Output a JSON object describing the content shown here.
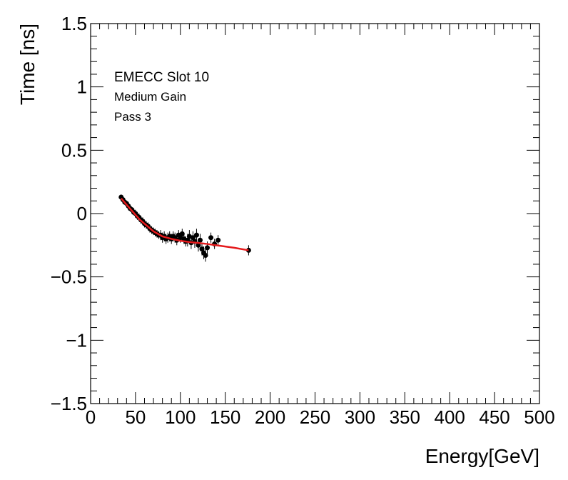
{
  "chart_data": {
    "type": "scatter",
    "title": "",
    "xlabel": "Energy[GeV]",
    "ylabel": "Time [ns]",
    "xlim": [
      0,
      500
    ],
    "ylim": [
      -1.5,
      1.5
    ],
    "x_ticks": [
      0,
      50,
      100,
      150,
      200,
      250,
      300,
      350,
      400,
      450,
      500
    ],
    "x_tick_labels": [
      "0",
      "50",
      "100",
      "150",
      "200",
      "250",
      "300",
      "350",
      "400",
      "450",
      "500"
    ],
    "y_ticks": [
      -1.5,
      -1,
      -0.5,
      0,
      0.5,
      1,
      1.5
    ],
    "y_tick_labels": [
      "−1.5",
      "−1",
      "−0.5",
      "0",
      "0.5",
      "1",
      "1.5"
    ],
    "grid": false,
    "annotations": [
      "EMECC Slot 10",
      "Medium Gain",
      "Pass 3"
    ],
    "colors": {
      "points": "#000000",
      "fit": "#e41a1c"
    },
    "series": [
      {
        "kind": "points_with_errors",
        "x": [
          34,
          36,
          38,
          40,
          42,
          44,
          46,
          48,
          50,
          52,
          54,
          56,
          58,
          60,
          62,
          64,
          66,
          68,
          70,
          72,
          74,
          76,
          78,
          80,
          82,
          84,
          86,
          88,
          90,
          92,
          94,
          96,
          98,
          100,
          102,
          104,
          106,
          108,
          110,
          112,
          114,
          116,
          118,
          120,
          122,
          124,
          126,
          128,
          130,
          134,
          138,
          142,
          176
        ],
        "y": [
          0.13,
          0.11,
          0.09,
          0.08,
          0.06,
          0.04,
          0.03,
          0.01,
          0.0,
          -0.02,
          -0.03,
          -0.05,
          -0.06,
          -0.08,
          -0.09,
          -0.1,
          -0.12,
          -0.13,
          -0.14,
          -0.15,
          -0.16,
          -0.17,
          -0.17,
          -0.19,
          -0.18,
          -0.2,
          -0.19,
          -0.18,
          -0.2,
          -0.18,
          -0.19,
          -0.21,
          -0.17,
          -0.19,
          -0.16,
          -0.2,
          -0.22,
          -0.21,
          -0.18,
          -0.23,
          -0.19,
          -0.22,
          -0.17,
          -0.25,
          -0.21,
          -0.28,
          -0.31,
          -0.33,
          -0.27,
          -0.19,
          -0.24,
          -0.21,
          -0.29
        ],
        "yerr": [
          0.02,
          0.02,
          0.02,
          0.02,
          0.02,
          0.02,
          0.02,
          0.02,
          0.03,
          0.03,
          0.03,
          0.03,
          0.03,
          0.03,
          0.03,
          0.03,
          0.03,
          0.03,
          0.03,
          0.03,
          0.03,
          0.03,
          0.04,
          0.04,
          0.04,
          0.04,
          0.04,
          0.04,
          0.04,
          0.04,
          0.04,
          0.04,
          0.04,
          0.04,
          0.04,
          0.04,
          0.04,
          0.05,
          0.05,
          0.05,
          0.05,
          0.05,
          0.05,
          0.05,
          0.05,
          0.05,
          0.05,
          0.05,
          0.05,
          0.04,
          0.04,
          0.04,
          0.04
        ]
      },
      {
        "kind": "fit_line",
        "x": [
          34,
          40,
          45,
          50,
          55,
          60,
          65,
          70,
          75,
          80,
          90,
          100,
          110,
          120,
          130,
          140,
          150,
          160,
          176
        ],
        "y": [
          0.12,
          0.07,
          0.03,
          -0.01,
          -0.05,
          -0.08,
          -0.11,
          -0.14,
          -0.16,
          -0.18,
          -0.2,
          -0.215,
          -0.225,
          -0.232,
          -0.24,
          -0.25,
          -0.26,
          -0.27,
          -0.29
        ]
      }
    ]
  }
}
